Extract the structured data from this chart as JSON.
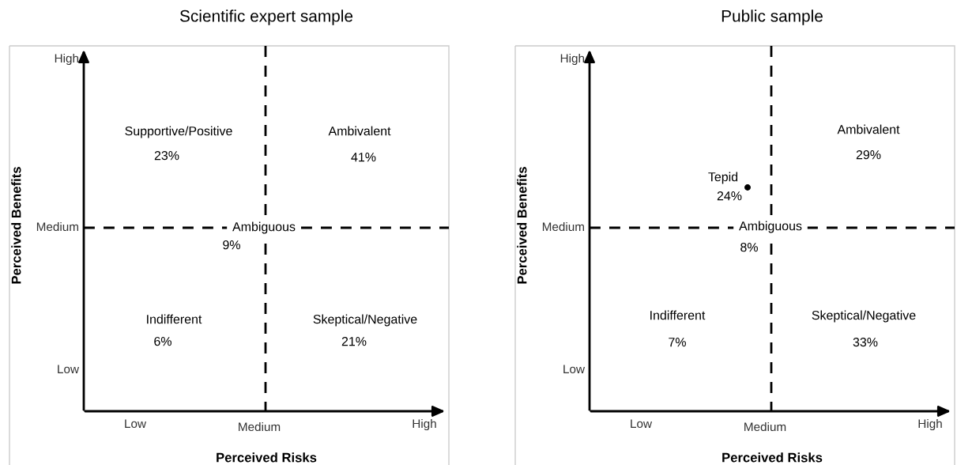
{
  "chart_data": [
    {
      "type": "other",
      "title": "Scientific expert sample",
      "xlabel": "Perceived Risks",
      "ylabel": "Perceived Benefits",
      "annotations": [
        "High",
        "Medium",
        "Low",
        "Low",
        "Medium",
        "High"
      ],
      "categories": [
        "Supportive/Positive",
        "Ambivalent",
        "Ambiguous",
        "Indifferent",
        "Skeptical/Negative"
      ],
      "values": [
        23,
        41,
        9,
        6,
        21
      ],
      "value_labels": [
        "23%",
        "41%",
        "9%",
        "6%",
        "21%"
      ]
    },
    {
      "type": "other",
      "title": "Public sample",
      "xlabel": "Perceived Risks",
      "ylabel": "Perceived Benefits",
      "annotations": [
        "High",
        "Medium",
        "Low",
        "Low",
        "Medium",
        "High"
      ],
      "categories": [
        "Tepid",
        "Ambivalent",
        "Ambiguous",
        "Indifferent",
        "Skeptical/Negative"
      ],
      "values": [
        24,
        29,
        8,
        7,
        33
      ],
      "value_labels": [
        "24%",
        "29%",
        "8%",
        "7%",
        "33%"
      ]
    }
  ]
}
